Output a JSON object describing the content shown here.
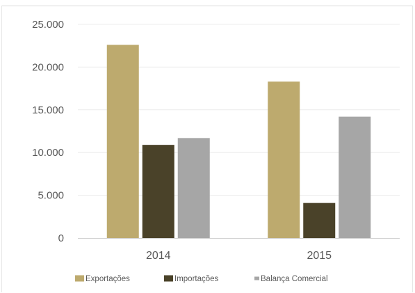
{
  "chart_data": {
    "type": "bar",
    "categories": [
      "2014",
      "2015"
    ],
    "series": [
      {
        "name": "Exportações",
        "values": [
          22600,
          18300
        ],
        "color": "#bdaa6e"
      },
      {
        "name": "Importações",
        "values": [
          10900,
          4100
        ],
        "color": "#4a4229"
      },
      {
        "name": "Balança Comercial",
        "values": [
          11700,
          14200
        ],
        "color": "#a6a6a6"
      }
    ],
    "ylim": [
      0,
      25000
    ],
    "yticks": [
      0,
      5000,
      10000,
      15000,
      20000,
      25000
    ],
    "ytick_labels": [
      "0",
      "5.000",
      "10.000",
      "15.000",
      "20.000",
      "25.000"
    ],
    "title": "",
    "xlabel": "",
    "ylabel": "",
    "grid": true,
    "legend_position": "bottom"
  }
}
